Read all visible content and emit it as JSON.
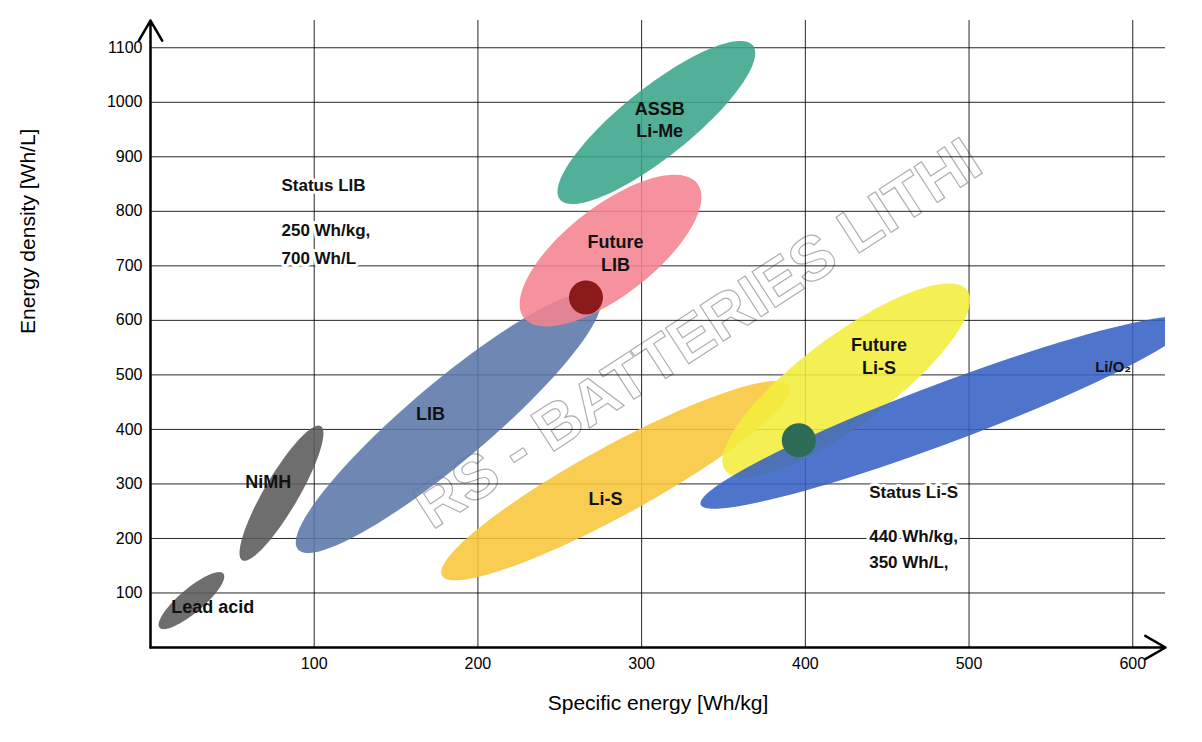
{
  "chart_data": {
    "type": "region",
    "xlabel": "Specific energy [Wh/kg]",
    "ylabel": "Energy density [Wh/L]",
    "xlim": [
      0,
      620
    ],
    "ylim": [
      0,
      1150
    ],
    "xticks": [
      100,
      200,
      300,
      400,
      500,
      600
    ],
    "yticks": [
      100,
      200,
      300,
      400,
      500,
      600,
      700,
      800,
      900,
      1000,
      1100
    ],
    "grid": true,
    "watermark": "RS - BATTERIES LITHI",
    "series": [
      {
        "name": "Lead acid",
        "color": "#5a5a5a",
        "center": [
          25,
          86
        ],
        "axis1": [
          19.5,
          49.5
        ],
        "axis2": [
          4.7,
          -16.9
        ],
        "label_at": [
          38,
          77
        ]
      },
      {
        "name": "NiMH",
        "color": "#5a5a5a",
        "center": [
          80,
          283
        ],
        "axis1": [
          24,
          123
        ],
        "axis2": [
          9,
          -16
        ],
        "label_at": [
          72,
          306
        ]
      },
      {
        "name": "LIB",
        "color": "#5a78a8",
        "center": [
          182,
          413
        ],
        "axis1": [
          92,
          233
        ],
        "axis2": [
          15.5,
          -56
        ],
        "label_at": [
          171,
          431
        ]
      },
      {
        "name": "Future\nLIB",
        "color": "#f4838f",
        "center": [
          281,
          728
        ],
        "axis1": [
          53,
          123
        ],
        "axis2": [
          16.5,
          -65
        ],
        "label_at": [
          284,
          725
        ]
      },
      {
        "name": "ASSB\nLi-Me",
        "color": "#3aa58a",
        "center": [
          309,
          963
        ],
        "axis1": [
          59,
          141
        ],
        "axis2": [
          13,
          -50
        ],
        "label_at": [
          311,
          970
        ]
      },
      {
        "name": "Li-S",
        "color": "#f8c63a",
        "center": [
          284,
          306
        ],
        "axis1": [
          106,
          174
        ],
        "axis2": [
          10,
          -56
        ],
        "label_at": [
          278,
          275
        ]
      },
      {
        "name": "Future\nLi-S",
        "color": "#f3ee3c",
        "center": [
          425,
          490
        ],
        "axis1": [
          74,
          165
        ],
        "axis2": [
          16,
          -66
        ],
        "label_at": [
          445,
          536
        ]
      },
      {
        "name": "Li/O₂",
        "color": "#3561c4",
        "center": [
          486,
          431
        ],
        "axis1": [
          150,
          169
        ],
        "axis2": [
          6.4,
          -51
        ],
        "label_at": [
          588,
          517
        ]
      }
    ],
    "points": [
      {
        "x": 266,
        "y": 642,
        "color": "#8b1a1a"
      },
      {
        "x": 396,
        "y": 380,
        "color": "#2d6b55"
      }
    ],
    "annotations": [
      {
        "text": "Status LIB",
        "x": 80,
        "y": 848
      },
      {
        "text": "250 Wh/kg,",
        "x": 80,
        "y": 765
      },
      {
        "text": "700 Wh/L",
        "x": 80,
        "y": 714
      },
      {
        "text": "Status Li-S",
        "x": 439,
        "y": 284
      },
      {
        "text": "440 Wh/kg,",
        "x": 439,
        "y": 204
      },
      {
        "text": "350 Wh/L,",
        "x": 439,
        "y": 156
      }
    ]
  }
}
